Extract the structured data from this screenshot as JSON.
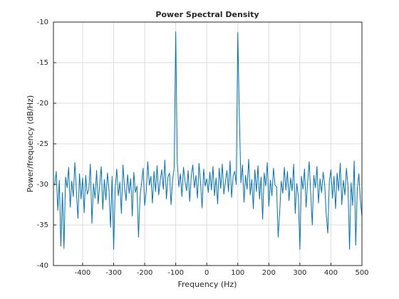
{
  "chart_data": {
    "type": "line",
    "title": "Power Spectral Density",
    "xlabel": "Frequency (Hz)",
    "ylabel": "Power/frequency (dB/Hz)",
    "color": "#0072bd",
    "grid": true,
    "xlim": [
      -494,
      500
    ],
    "xticks": [
      -400,
      -300,
      -200,
      -100,
      0,
      100,
      200,
      300,
      400,
      500
    ],
    "ylim": [
      -40,
      -10
    ],
    "yticks": [
      -40,
      -35,
      -30,
      -25,
      -20,
      -15,
      -10
    ],
    "x": [
      -490,
      -485,
      -480,
      -475,
      -470,
      -465,
      -460,
      -455,
      -450,
      -445,
      -440,
      -435,
      -430,
      -425,
      -420,
      -415,
      -410,
      -405,
      -400,
      -395,
      -390,
      -385,
      -380,
      -375,
      -370,
      -365,
      -360,
      -355,
      -350,
      -345,
      -340,
      -335,
      -330,
      -325,
      -320,
      -315,
      -310,
      -305,
      -300,
      -295,
      -290,
      -285,
      -280,
      -275,
      -270,
      -265,
      -260,
      -255,
      -250,
      -245,
      -240,
      -235,
      -230,
      -225,
      -220,
      -215,
      -210,
      -205,
      -200,
      -195,
      -190,
      -185,
      -180,
      -175,
      -170,
      -165,
      -160,
      -155,
      -150,
      -145,
      -140,
      -135,
      -130,
      -125,
      -120,
      -115,
      -110,
      -105,
      -100,
      -95,
      -90,
      -85,
      -80,
      -75,
      -70,
      -65,
      -60,
      -55,
      -50,
      -45,
      -40,
      -35,
      -30,
      -25,
      -20,
      -15,
      -10,
      -5,
      0,
      5,
      10,
      15,
      20,
      25,
      30,
      35,
      40,
      45,
      50,
      55,
      60,
      65,
      70,
      75,
      80,
      85,
      90,
      95,
      100,
      105,
      110,
      115,
      120,
      125,
      130,
      135,
      140,
      145,
      150,
      155,
      160,
      165,
      170,
      175,
      180,
      185,
      190,
      195,
      200,
      205,
      210,
      215,
      220,
      225,
      230,
      235,
      240,
      245,
      250,
      255,
      260,
      265,
      270,
      275,
      280,
      285,
      290,
      295,
      300,
      305,
      310,
      315,
      320,
      325,
      330,
      335,
      340,
      345,
      350,
      355,
      360,
      365,
      370,
      375,
      380,
      385,
      390,
      395,
      400,
      405,
      410,
      415,
      420,
      425,
      430,
      435,
      440,
      445,
      450,
      455,
      460,
      465,
      470,
      475,
      480,
      485,
      490,
      495,
      500
    ],
    "values": [
      -30.1,
      -28.4,
      -33.2,
      -29.5,
      -37.6,
      -31.0,
      -37.9,
      -29.1,
      -30.4,
      -27.9,
      -32.8,
      -29.6,
      -31.5,
      -27.3,
      -30.9,
      -34.2,
      -28.7,
      -31.8,
      -29.2,
      -33.5,
      -28.9,
      -31.2,
      -30.6,
      -27.5,
      -34.8,
      -29.9,
      -31.7,
      -28.3,
      -32.4,
      -30.0,
      -27.8,
      -33.1,
      -29.4,
      -31.9,
      -28.6,
      -30.7,
      -35.3,
      -29.0,
      -38.0,
      -30.5,
      -28.1,
      -31.4,
      -29.7,
      -33.6,
      -27.6,
      -30.3,
      -32.0,
      -28.8,
      -31.1,
      -29.3,
      -33.9,
      -28.5,
      -31.0,
      -30.2,
      -36.5,
      -31.6,
      -29.8,
      -28.0,
      -32.6,
      -30.8,
      -27.2,
      -30.1,
      -29.0,
      -32.3,
      -28.4,
      -30.9,
      -27.7,
      -31.3,
      -29.5,
      -28.2,
      -30.6,
      -27.0,
      -31.8,
      -29.1,
      -28.6,
      -32.5,
      -29.4,
      -28.0,
      -11.2,
      -27.3,
      -30.3,
      -28.7,
      -31.5,
      -27.9,
      -29.6,
      -30.8,
      -28.3,
      -32.1,
      -29.0,
      -27.6,
      -30.4,
      -28.9,
      -31.7,
      -27.4,
      -29.8,
      -32.9,
      -28.1,
      -30.2,
      -29.3,
      -31.0,
      -28.5,
      -30.7,
      -27.8,
      -31.4,
      -29.2,
      -32.4,
      -28.0,
      -30.5,
      -27.5,
      -31.2,
      -29.7,
      -28.3,
      -30.9,
      -27.1,
      -31.6,
      -29.0,
      -28.4,
      -30.0,
      -11.3,
      -21.5,
      -29.8,
      -27.6,
      -32.2,
      -28.9,
      -30.6,
      -26.9,
      -31.3,
      -29.4,
      -33.0,
      -28.2,
      -30.9,
      -27.7,
      -31.8,
      -29.1,
      -34.3,
      -28.6,
      -30.2,
      -27.3,
      -32.7,
      -29.5,
      -31.4,
      -28.0,
      -30.1,
      -30.3,
      -36.5,
      -33.4,
      -29.6,
      -31.1,
      -27.9,
      -30.7,
      -28.4,
      -32.0,
      -29.2,
      -30.8,
      -27.5,
      -33.6,
      -29.9,
      -31.5,
      -38.0,
      -29.0,
      -30.6,
      -28.1,
      -32.8,
      -29.7,
      -27.2,
      -31.2,
      -35.0,
      -28.9,
      -30.4,
      -27.8,
      -32.3,
      -29.3,
      -31.0,
      -28.5,
      -30.1,
      -33.8,
      -36.0,
      -29.6,
      -28.2,
      -31.7,
      -29.0,
      -33.0,
      -28.6,
      -30.8,
      -27.4,
      -32.5,
      -29.5,
      -31.3,
      -28.0,
      -30.2,
      -38.0,
      -29.8,
      -32.6,
      -27.1,
      -37.5,
      -30.5,
      -28.7,
      -31.9,
      -34.0
    ]
  }
}
